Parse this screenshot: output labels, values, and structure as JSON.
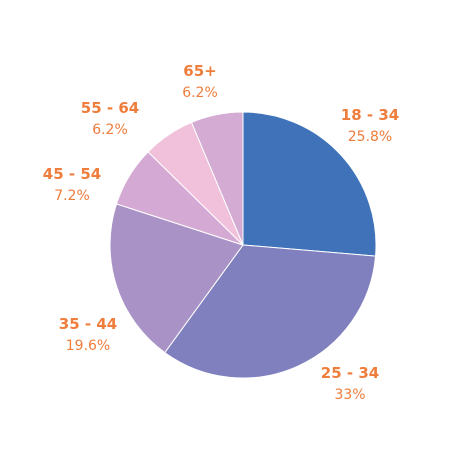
{
  "chart_data": {
    "type": "pie",
    "title": "",
    "start_angle_deg": 0,
    "direction": "clockwise",
    "slices": [
      {
        "label": "18 - 34",
        "value_label": "25.8%",
        "value": 25.8,
        "color": "#3f72b9"
      },
      {
        "label": "25 - 34",
        "value_label": "33%",
        "value": 33.0,
        "color": "#7f80bd"
      },
      {
        "label": "35 - 44",
        "value_label": "19.6%",
        "value": 19.6,
        "color": "#a993c6"
      },
      {
        "label": "45 - 54",
        "value_label": "7.2%",
        "value": 7.2,
        "color": "#d4a9d4"
      },
      {
        "label": "55 - 64",
        "value_label": "6.2%",
        "value": 6.2,
        "color": "#f1c1db"
      },
      {
        "label": "65+",
        "value_label": "6.2%",
        "value": 6.2,
        "color": "#d4abd3"
      }
    ],
    "label_color": "#ef7d3c"
  }
}
